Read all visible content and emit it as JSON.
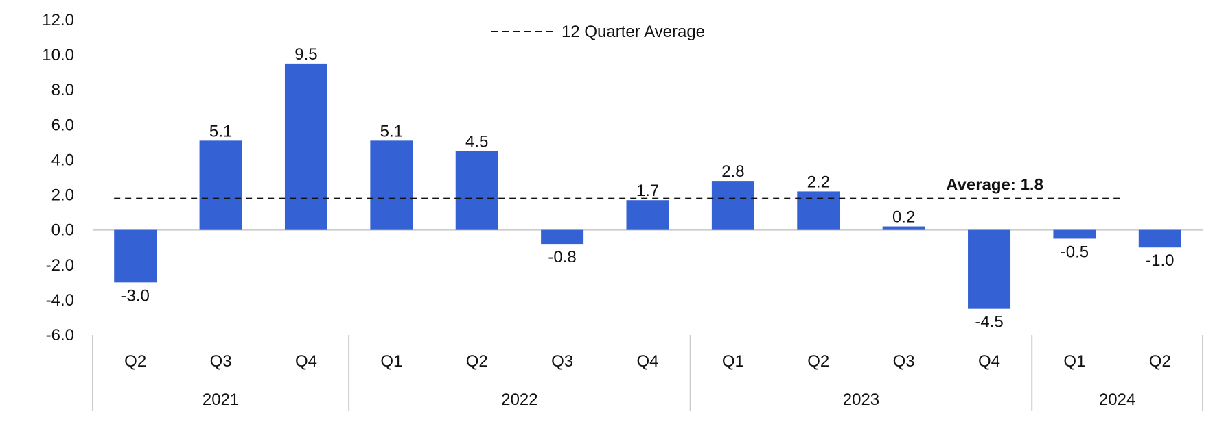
{
  "chart_data": {
    "type": "bar",
    "title": "",
    "xlabel": "",
    "ylabel": "",
    "ylim": [
      -6.0,
      12.0
    ],
    "yticks": [
      "12.0",
      "10.0",
      "8.0",
      "6.0",
      "4.0",
      "2.0",
      "0.0",
      "-2.0",
      "-4.0",
      "-6.0"
    ],
    "ytick_values": [
      12,
      10,
      8,
      6,
      4,
      2,
      0,
      -2,
      -4,
      -6
    ],
    "categories": [
      "Q2",
      "Q3",
      "Q4",
      "Q1",
      "Q2",
      "Q3",
      "Q4",
      "Q1",
      "Q2",
      "Q3",
      "Q4",
      "Q1",
      "Q2"
    ],
    "values": [
      -3.0,
      5.1,
      9.5,
      5.1,
      4.5,
      -0.8,
      1.7,
      2.8,
      2.2,
      0.2,
      -4.5,
      -0.5,
      -1.0
    ],
    "value_labels": [
      "-3.0",
      "5.1",
      "9.5",
      "5.1",
      "4.5",
      "-0.8",
      "1.7",
      "2.8",
      "2.2",
      "0.2",
      "-4.5",
      "-0.5",
      "-1.0"
    ],
    "groups": [
      {
        "label": "2021",
        "count": 3
      },
      {
        "label": "2022",
        "count": 4
      },
      {
        "label": "2023",
        "count": 4
      },
      {
        "label": "2024",
        "count": 2
      }
    ],
    "average": {
      "value": 1.8,
      "label": "Average: 1.8"
    },
    "legend": {
      "label": "12 Quarter Average",
      "placement": "top-center"
    },
    "colors": {
      "bar": "#3461d4",
      "zero_line": "#cccccc",
      "average_line": "#111111",
      "separator": "#cccccc"
    },
    "grid": false
  }
}
